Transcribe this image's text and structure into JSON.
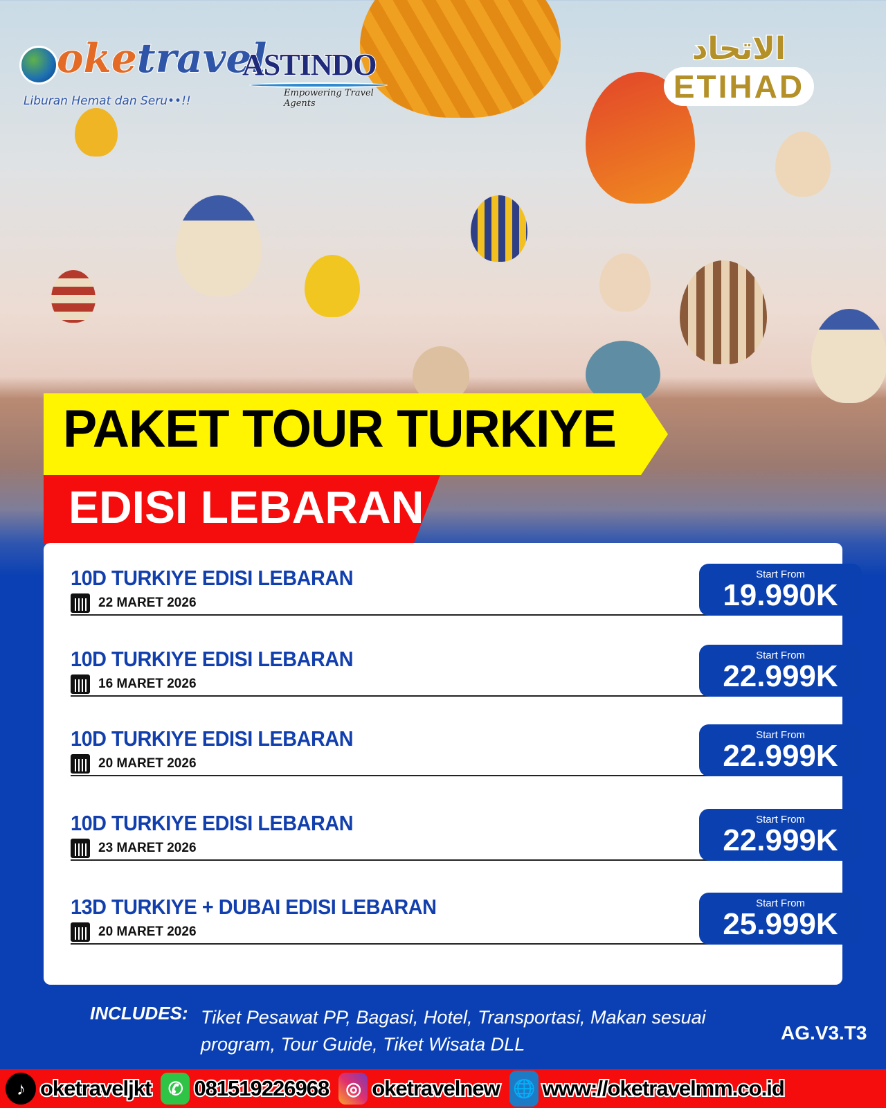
{
  "logos": {
    "oketravel": {
      "word_a": "oke",
      "word_b": "travel",
      "tagline": "Liburan Hemat dan Seru••!!"
    },
    "astindo": {
      "name": "ASTINDO",
      "tagline": "Empowering Travel Agents"
    },
    "etihad": {
      "arabic": "الاتحاد",
      "name": "ETIHAD"
    }
  },
  "banner": {
    "title": "PAKET TOUR TURKIYE",
    "subtitle": "EDISI LEBARAN"
  },
  "packages": [
    {
      "title": "10D TURKIYE EDISI LEBARAN",
      "date": "22 MARET 2026",
      "price_label": "Start From",
      "price": "19.990K"
    },
    {
      "title": "10D TURKIYE EDISI LEBARAN",
      "date": "16 MARET 2026",
      "price_label": "Start From",
      "price": "22.999K"
    },
    {
      "title": "10D TURKIYE EDISI LEBARAN",
      "date": "20 MARET 2026",
      "price_label": "Start From",
      "price": "22.999K"
    },
    {
      "title": "10D TURKIYE EDISI LEBARAN",
      "date": "23 MARET 2026",
      "price_label": "Start From",
      "price": "22.999K"
    },
    {
      "title": "13D TURKIYE + DUBAI EDISI LEBARAN",
      "date": "20 MARET 2026",
      "price_label": "Start From",
      "price": "25.999K"
    }
  ],
  "includes": {
    "label": "INCLUDES:",
    "text": "Tiket Pesawat PP, Bagasi, Hotel, Transportasi, Makan sesuai program, Tour Guide, Tiket Wisata DLL"
  },
  "code": "AG.V3.T3",
  "footer": {
    "tiktok": "oketraveljkt",
    "whatsapp": "081519226968",
    "instagram": "oketravelnew",
    "website": "www://oketravelmm.co.id"
  },
  "colors": {
    "primary_blue": "#0b40b1",
    "banner_yellow": "#fff500",
    "banner_red": "#f50c0c",
    "title_blue": "#123fae"
  }
}
